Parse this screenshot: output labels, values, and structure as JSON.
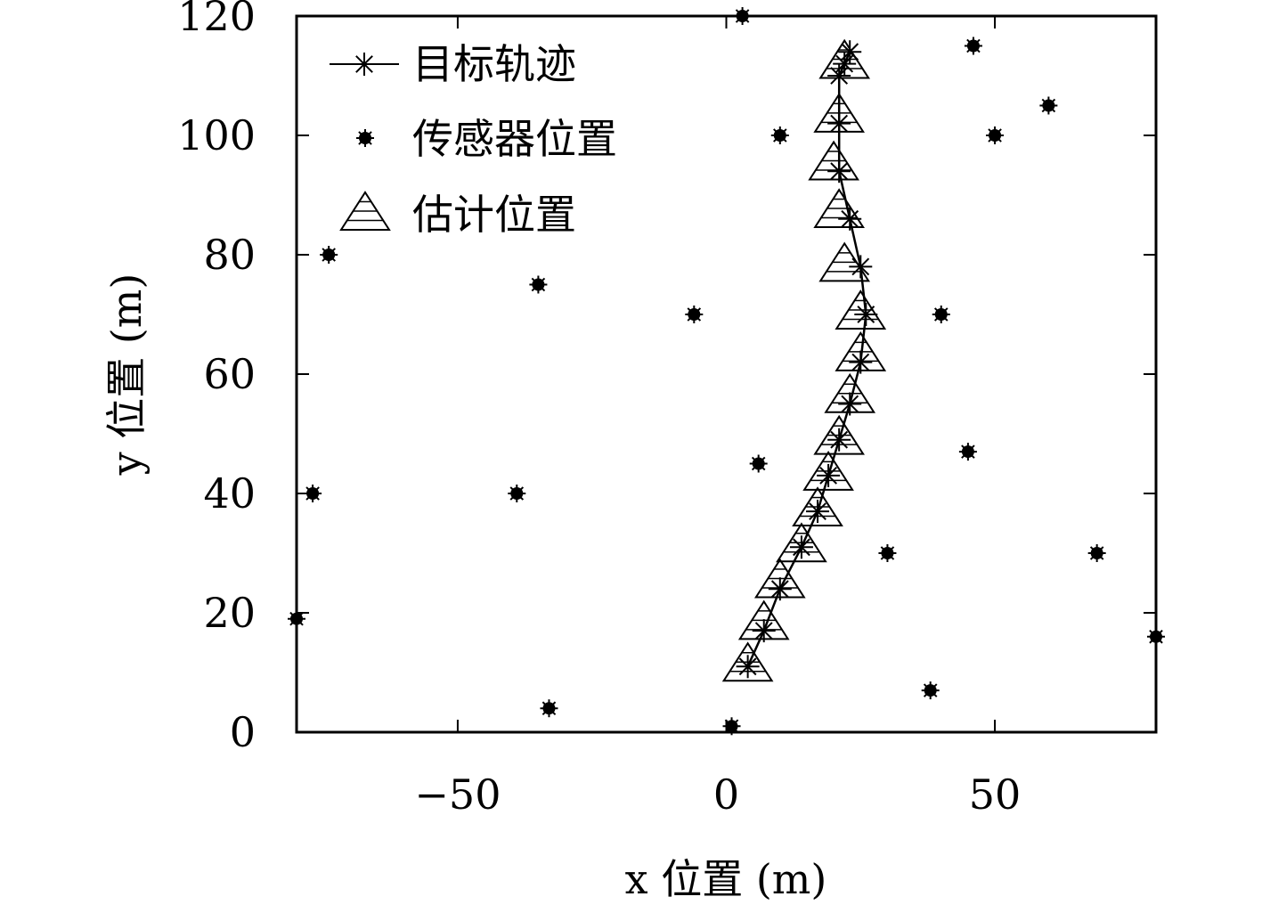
{
  "chart_data": {
    "type": "scatter",
    "title": "",
    "xlabel": "x 位置 (m)",
    "ylabel": "y 位置 (m)",
    "xlim": [
      -80,
      80
    ],
    "ylim": [
      0,
      120
    ],
    "xticks": [
      -50,
      0,
      50
    ],
    "xtick_labels": [
      "−50",
      "0",
      "50"
    ],
    "yticks": [
      0,
      20,
      40,
      60,
      80,
      100,
      120
    ],
    "ytick_labels": [
      "0",
      "20",
      "40",
      "60",
      "80",
      "100",
      "120"
    ],
    "grid": false,
    "legend_position": "top-left",
    "series": [
      {
        "name": "目标轨迹",
        "marker": "asterisk-line",
        "x": [
          4,
          7,
          10,
          14,
          17,
          19,
          21,
          23,
          25,
          26,
          25,
          23,
          21,
          21,
          21,
          22,
          23
        ],
        "y": [
          11,
          17,
          24,
          31,
          37,
          43,
          49,
          55,
          62,
          70,
          78,
          86,
          94,
          102,
          110,
          112,
          114
        ]
      },
      {
        "name": "传感器位置",
        "marker": "filled-circle",
        "x": [
          3,
          46,
          60,
          10,
          50,
          -74,
          -35,
          -6,
          40,
          6,
          45,
          -77,
          -39,
          30,
          69,
          -80,
          80,
          38,
          -33,
          1
        ],
        "y": [
          120,
          115,
          105,
          100,
          100,
          80,
          75,
          70,
          70,
          45,
          47,
          40,
          40,
          30,
          30,
          19,
          16,
          7,
          4,
          1
        ]
      },
      {
        "name": "估计位置",
        "marker": "open-triangle",
        "x": [
          4,
          7,
          10,
          14,
          17,
          19,
          21,
          23,
          25,
          25,
          22,
          21,
          20,
          21,
          22
        ],
        "y": [
          11,
          18,
          25,
          31,
          37,
          43,
          49,
          56,
          63,
          70,
          78,
          87,
          95,
          103,
          112
        ]
      }
    ]
  }
}
